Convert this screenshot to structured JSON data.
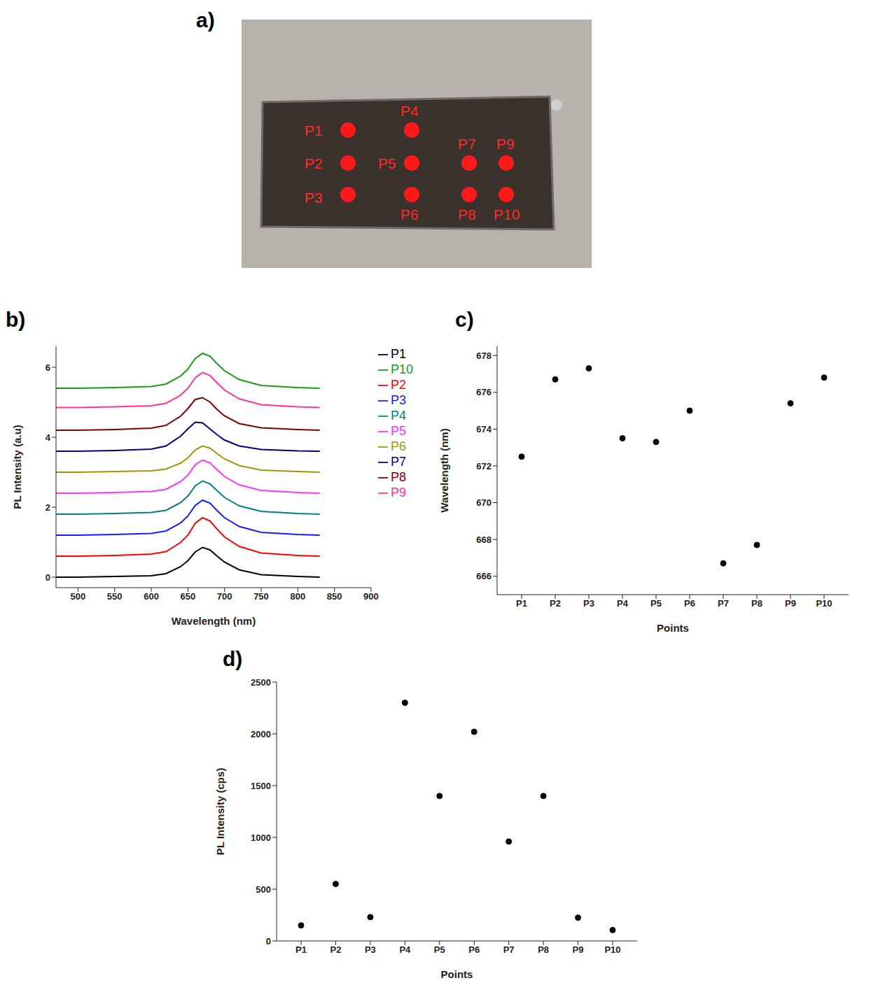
{
  "panel_labels": [
    "a)",
    "b)",
    "c)",
    "d)"
  ],
  "photo": {
    "points": [
      {
        "label": "P1"
      },
      {
        "label": "P2"
      },
      {
        "label": "P3"
      },
      {
        "label": "P4"
      },
      {
        "label": "P5"
      },
      {
        "label": "P6"
      },
      {
        "label": "P7"
      },
      {
        "label": "P8"
      },
      {
        "label": "P9"
      },
      {
        "label": "P10"
      }
    ]
  },
  "chart_data": [
    {
      "type": "line",
      "x_label": "Wavelength (nm)",
      "y_label": "PL Intensity (a.u)",
      "x": [
        470,
        500,
        550,
        600,
        620,
        640,
        650,
        660,
        670,
        680,
        690,
        700,
        720,
        750,
        800,
        830
      ],
      "xlim": [
        470,
        900
      ],
      "xticks": [
        500,
        550,
        600,
        650,
        700,
        750,
        800,
        850,
        900
      ],
      "ylim": [
        -0.3,
        6.6
      ],
      "yticks": [
        0,
        2,
        4,
        6
      ],
      "legend": "right",
      "series": [
        {
          "name": "P1",
          "color": "#000000",
          "values": [
            0,
            0,
            0.02,
            0.04,
            0.1,
            0.3,
            0.47,
            0.72,
            0.85,
            0.78,
            0.6,
            0.43,
            0.21,
            0.07,
            0.02,
            0
          ]
        },
        {
          "name": "P2",
          "color": "#ff0000",
          "values": [
            0.6,
            0.6,
            0.62,
            0.66,
            0.73,
            0.99,
            1.2,
            1.54,
            1.7,
            1.61,
            1.37,
            1.15,
            0.88,
            0.69,
            0.62,
            0.6
          ]
        },
        {
          "name": "P3",
          "color": "#1a1aff",
          "values": [
            1.2,
            1.2,
            1.22,
            1.25,
            1.32,
            1.55,
            1.75,
            2.05,
            2.2,
            2.12,
            1.9,
            1.7,
            1.45,
            1.28,
            1.22,
            1.2
          ]
        },
        {
          "name": "P4",
          "color": "#008080",
          "values": [
            1.8,
            1.8,
            1.82,
            1.85,
            1.91,
            2.13,
            2.32,
            2.61,
            2.75,
            2.67,
            2.47,
            2.28,
            2.04,
            1.88,
            1.82,
            1.8
          ]
        },
        {
          "name": "P5",
          "color": "#ff33ff",
          "values": [
            2.4,
            2.4,
            2.42,
            2.45,
            2.51,
            2.73,
            2.92,
            3.21,
            3.35,
            3.27,
            3.07,
            2.88,
            2.64,
            2.48,
            2.42,
            2.4
          ]
        },
        {
          "name": "P6",
          "color": "#999900",
          "values": [
            3.0,
            3.0,
            3.02,
            3.04,
            3.09,
            3.26,
            3.41,
            3.64,
            3.75,
            3.69,
            3.53,
            3.38,
            3.19,
            3.06,
            3.02,
            3.0
          ]
        },
        {
          "name": "P7",
          "color": "#000080",
          "values": [
            3.6,
            3.6,
            3.62,
            3.66,
            3.75,
            4.03,
            4.24,
            4.43,
            4.41,
            4.24,
            4.07,
            3.92,
            3.75,
            3.65,
            3.61,
            3.6
          ]
        },
        {
          "name": "P8",
          "color": "#800000",
          "values": [
            4.2,
            4.2,
            4.22,
            4.26,
            4.34,
            4.6,
            4.82,
            5.08,
            5.13,
            5.01,
            4.79,
            4.61,
            4.39,
            4.27,
            4.22,
            4.2
          ]
        },
        {
          "name": "P9",
          "color": "#ff3399",
          "values": [
            4.85,
            4.85,
            4.87,
            4.9,
            4.97,
            5.2,
            5.4,
            5.7,
            5.85,
            5.77,
            5.55,
            5.35,
            5.1,
            4.93,
            4.87,
            4.85
          ]
        },
        {
          "name": "P10",
          "color": "#1a9a1a",
          "values": [
            5.4,
            5.4,
            5.42,
            5.45,
            5.52,
            5.75,
            5.95,
            6.25,
            6.4,
            6.32,
            6.1,
            5.9,
            5.65,
            5.48,
            5.42,
            5.4
          ]
        }
      ]
    },
    {
      "type": "scatter",
      "x_label": "Points",
      "y_label": "Wavelength (nm)",
      "color": "#000000",
      "marker": "circle",
      "categories": [
        "P1",
        "P2",
        "P3",
        "P4",
        "P5",
        "P6",
        "P7",
        "P8",
        "P9",
        "P10"
      ],
      "values": [
        672.5,
        676.7,
        677.3,
        673.5,
        673.3,
        675.0,
        666.7,
        667.7,
        675.4,
        676.8
      ],
      "ylim": [
        665,
        678.5
      ],
      "yticks": [
        666,
        668,
        670,
        672,
        674,
        676,
        678
      ]
    },
    {
      "type": "scatter",
      "x_label": "Points",
      "y_label": "PL Intensity (cps)",
      "color": "#000000",
      "marker": "circle",
      "categories": [
        "P1",
        "P2",
        "P3",
        "P4",
        "P5",
        "P6",
        "P7",
        "P8",
        "P9",
        "P10"
      ],
      "values": [
        150,
        550,
        230,
        2300,
        1400,
        2020,
        960,
        1400,
        225,
        105
      ],
      "ylim": [
        0,
        2500
      ],
      "yticks": [
        0,
        500,
        1000,
        1500,
        2000,
        2500
      ]
    }
  ]
}
